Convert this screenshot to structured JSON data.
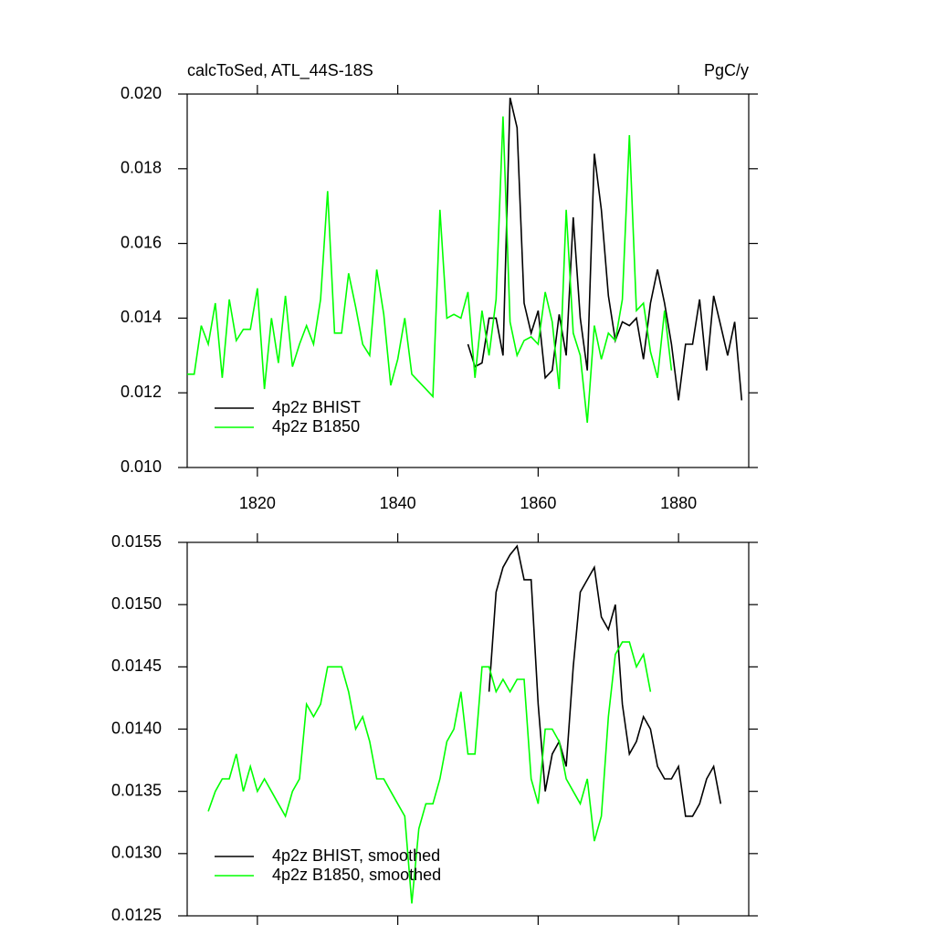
{
  "chart_data": [
    {
      "type": "line",
      "title": "calcToSed, ATL_44S-18S",
      "right_title": "PgC/y",
      "xlim": [
        1810,
        1890
      ],
      "xticks": [
        1820,
        1840,
        1860,
        1880
      ],
      "ylim": [
        0.01,
        0.02
      ],
      "yticks": [
        {
          "value": 0.01,
          "label": "0.010"
        },
        0.012,
        0.014,
        0.016,
        0.018,
        {
          "value": 0.02,
          "label": "0.020"
        }
      ],
      "legend": "lower left",
      "series": [
        {
          "name": "4p2z BHIST",
          "color": "#000000",
          "x": [
            1850,
            1851,
            1852,
            1853,
            1854,
            1855,
            1856,
            1857,
            1858,
            1859,
            1860,
            1861,
            1862,
            1863,
            1864,
            1865,
            1866,
            1867,
            1868,
            1869,
            1870,
            1871,
            1872,
            1873,
            1874,
            1875,
            1876,
            1877,
            1878,
            1879,
            1880,
            1881,
            1882,
            1883,
            1884,
            1885,
            1886,
            1887,
            1888,
            1889
          ],
          "values": [
            0.0133,
            0.0127,
            0.0128,
            0.014,
            0.014,
            0.013,
            0.0199,
            0.0191,
            0.0144,
            0.0136,
            0.0142,
            0.0124,
            0.0126,
            0.0141,
            0.013,
            0.0167,
            0.014,
            0.0126,
            0.0184,
            0.0169,
            0.0146,
            0.0134,
            0.0139,
            0.0138,
            0.014,
            0.0129,
            0.0144,
            0.0153,
            0.0144,
            0.0133,
            0.0118,
            0.0133,
            0.0133,
            0.0145,
            0.0126,
            0.0146,
            0.0138,
            0.013,
            0.0139,
            0.0118
          ]
        },
        {
          "name": "4p2z B1850",
          "color": "#00ff00",
          "x": [
            1810,
            1811,
            1812,
            1813,
            1814,
            1815,
            1816,
            1817,
            1818,
            1819,
            1820,
            1821,
            1822,
            1823,
            1824,
            1825,
            1826,
            1827,
            1828,
            1829,
            1830,
            1831,
            1832,
            1833,
            1834,
            1835,
            1836,
            1837,
            1838,
            1839,
            1840,
            1841,
            1842,
            1843,
            1844,
            1845,
            1846,
            1847,
            1848,
            1849,
            1850,
            1851,
            1852,
            1853,
            1854,
            1855,
            1856,
            1857,
            1858,
            1859,
            1860,
            1861,
            1862,
            1863,
            1864,
            1865,
            1866,
            1867,
            1868,
            1869,
            1870,
            1871,
            1872,
            1873,
            1874,
            1875,
            1876,
            1877,
            1878,
            1879
          ],
          "values": [
            0.0125,
            0.0125,
            0.0138,
            0.0133,
            0.0144,
            0.0124,
            0.0145,
            0.0134,
            0.0137,
            0.0137,
            0.0148,
            0.0121,
            0.014,
            0.0128,
            0.0146,
            0.0127,
            0.0133,
            0.0138,
            0.0133,
            0.0145,
            0.0174,
            0.0136,
            0.0136,
            0.0152,
            0.0143,
            0.0133,
            0.013,
            0.0153,
            0.0141,
            0.0122,
            0.0129,
            0.014,
            0.0125,
            0.0123,
            0.0121,
            0.0119,
            0.0169,
            0.014,
            0.0141,
            0.014,
            0.0147,
            0.0124,
            0.0142,
            0.013,
            0.0145,
            0.0194,
            0.0139,
            0.013,
            0.0134,
            0.0135,
            0.0133,
            0.0147,
            0.0139,
            0.0121,
            0.0169,
            0.0136,
            0.013,
            0.0112,
            0.0138,
            0.0129,
            0.0136,
            0.0134,
            0.0145,
            0.0189,
            0.0142,
            0.0144,
            0.0131,
            0.0124,
            0.0142,
            0.0126
          ]
        }
      ]
    },
    {
      "type": "line",
      "xlim": [
        1810,
        1890
      ],
      "xticks": [
        1820,
        1840,
        1860,
        1880
      ],
      "ylim": [
        0.0125,
        0.0155
      ],
      "yticks": [
        0.0125,
        {
          "value": 0.013,
          "label": "0.0130"
        },
        0.0135,
        {
          "value": 0.014,
          "label": "0.0140"
        },
        0.0145,
        {
          "value": 0.015,
          "label": "0.0150"
        },
        0.0155
      ],
      "legend": "lower left",
      "series": [
        {
          "name": "4p2z BHIST, smoothed",
          "color": "#000000",
          "x": [
            1853,
            1854,
            1855,
            1856,
            1857,
            1858,
            1859,
            1860,
            1861,
            1862,
            1863,
            1864,
            1865,
            1866,
            1867,
            1868,
            1869,
            1870,
            1871,
            1872,
            1873,
            1874,
            1875,
            1876,
            1877,
            1878,
            1879,
            1880,
            1881,
            1882,
            1883,
            1884,
            1885,
            1886
          ],
          "values": [
            0.0143,
            0.0151,
            0.0153,
            0.0154,
            0.01547,
            0.0152,
            0.0152,
            0.0142,
            0.0135,
            0.0138,
            0.0139,
            0.0137,
            0.0145,
            0.0151,
            0.0152,
            0.0153,
            0.0149,
            0.0148,
            0.015,
            0.0142,
            0.0138,
            0.0139,
            0.0141,
            0.014,
            0.0137,
            0.0136,
            0.0136,
            0.0137,
            0.0133,
            0.0133,
            0.0134,
            0.0136,
            0.0137,
            0.0134
          ]
        },
        {
          "name": "4p2z B1850, smoothed",
          "color": "#00ff00",
          "x": [
            1813,
            1814,
            1815,
            1816,
            1817,
            1818,
            1819,
            1820,
            1821,
            1822,
            1823,
            1824,
            1825,
            1826,
            1827,
            1828,
            1829,
            1830,
            1831,
            1832,
            1833,
            1834,
            1835,
            1836,
            1837,
            1838,
            1839,
            1840,
            1841,
            1842,
            1843,
            1844,
            1845,
            1846,
            1847,
            1848,
            1849,
            1850,
            1851,
            1852,
            1853,
            1854,
            1855,
            1856,
            1857,
            1858,
            1859,
            1860,
            1861,
            1862,
            1863,
            1864,
            1865,
            1866,
            1867,
            1868,
            1869,
            1870,
            1871,
            1872,
            1873,
            1874,
            1875,
            1876
          ],
          "values": [
            0.01334,
            0.0135,
            0.0136,
            0.0136,
            0.0138,
            0.0135,
            0.0137,
            0.0135,
            0.0136,
            0.0135,
            0.0134,
            0.0133,
            0.0135,
            0.0136,
            0.0142,
            0.0141,
            0.0142,
            0.0145,
            0.0145,
            0.0145,
            0.0143,
            0.014,
            0.0141,
            0.0139,
            0.0136,
            0.0136,
            0.0135,
            0.0134,
            0.0133,
            0.0126,
            0.0132,
            0.0134,
            0.0134,
            0.0136,
            0.0139,
            0.014,
            0.0143,
            0.0138,
            0.0138,
            0.0145,
            0.0145,
            0.0143,
            0.0144,
            0.0143,
            0.0144,
            0.0144,
            0.0136,
            0.0134,
            0.014,
            0.014,
            0.0139,
            0.0136,
            0.0135,
            0.0134,
            0.0136,
            0.0131,
            0.0133,
            0.0141,
            0.0146,
            0.0147,
            0.0147,
            0.0145,
            0.0146,
            0.0143
          ]
        }
      ]
    }
  ]
}
